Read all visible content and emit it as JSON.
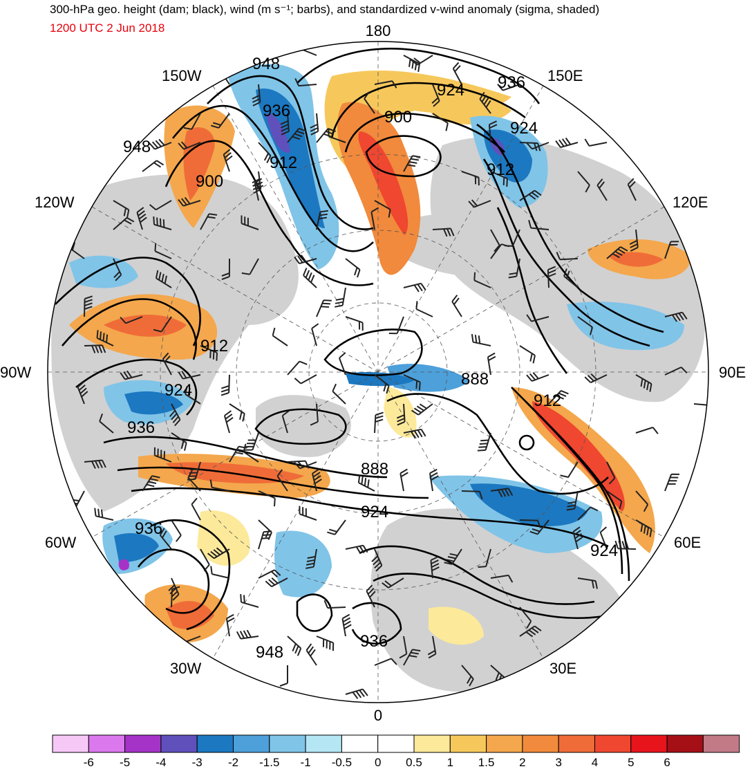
{
  "header": {
    "title": "300-hPa geo. height (dam; black), wind (m s⁻¹; barbs), and standardized v-wind anomaly (sigma, shaded)",
    "valid_time": "1200 UTC 2 Jun 2018",
    "valid_time_color": "#e8000b"
  },
  "longitude_labels": [
    "180",
    "150E",
    "120E",
    "90E",
    "60E",
    "30E",
    "0",
    "30W",
    "60W",
    "90W",
    "120W",
    "150W"
  ],
  "contour_labels": [
    "948",
    "936",
    "924",
    "900",
    "912",
    "948",
    "900",
    "936",
    "924",
    "912",
    "912",
    "924",
    "888",
    "912",
    "936",
    "888",
    "924",
    "936",
    "924",
    "936",
    "948"
  ],
  "colorbar": {
    "colors": [
      "#f6c8f6",
      "#dc78ee",
      "#a633c8",
      "#6050bb",
      "#1c78c0",
      "#4da0da",
      "#80c4e8",
      "#b4e6f4",
      "#ffffff",
      "#ffffff",
      "#fce99a",
      "#f6c85c",
      "#f4a74c",
      "#f18a3c",
      "#ef6c38",
      "#ef4730",
      "#e8141c",
      "#a50f16",
      "#c27a87"
    ],
    "tick_labels": [
      "-6",
      "-5",
      "-4",
      "-3",
      "-2",
      "-1.5",
      "-1",
      "-0.5",
      "0",
      "0.5",
      "1",
      "1.5",
      "2",
      "3",
      "4",
      "5",
      "6"
    ]
  }
}
